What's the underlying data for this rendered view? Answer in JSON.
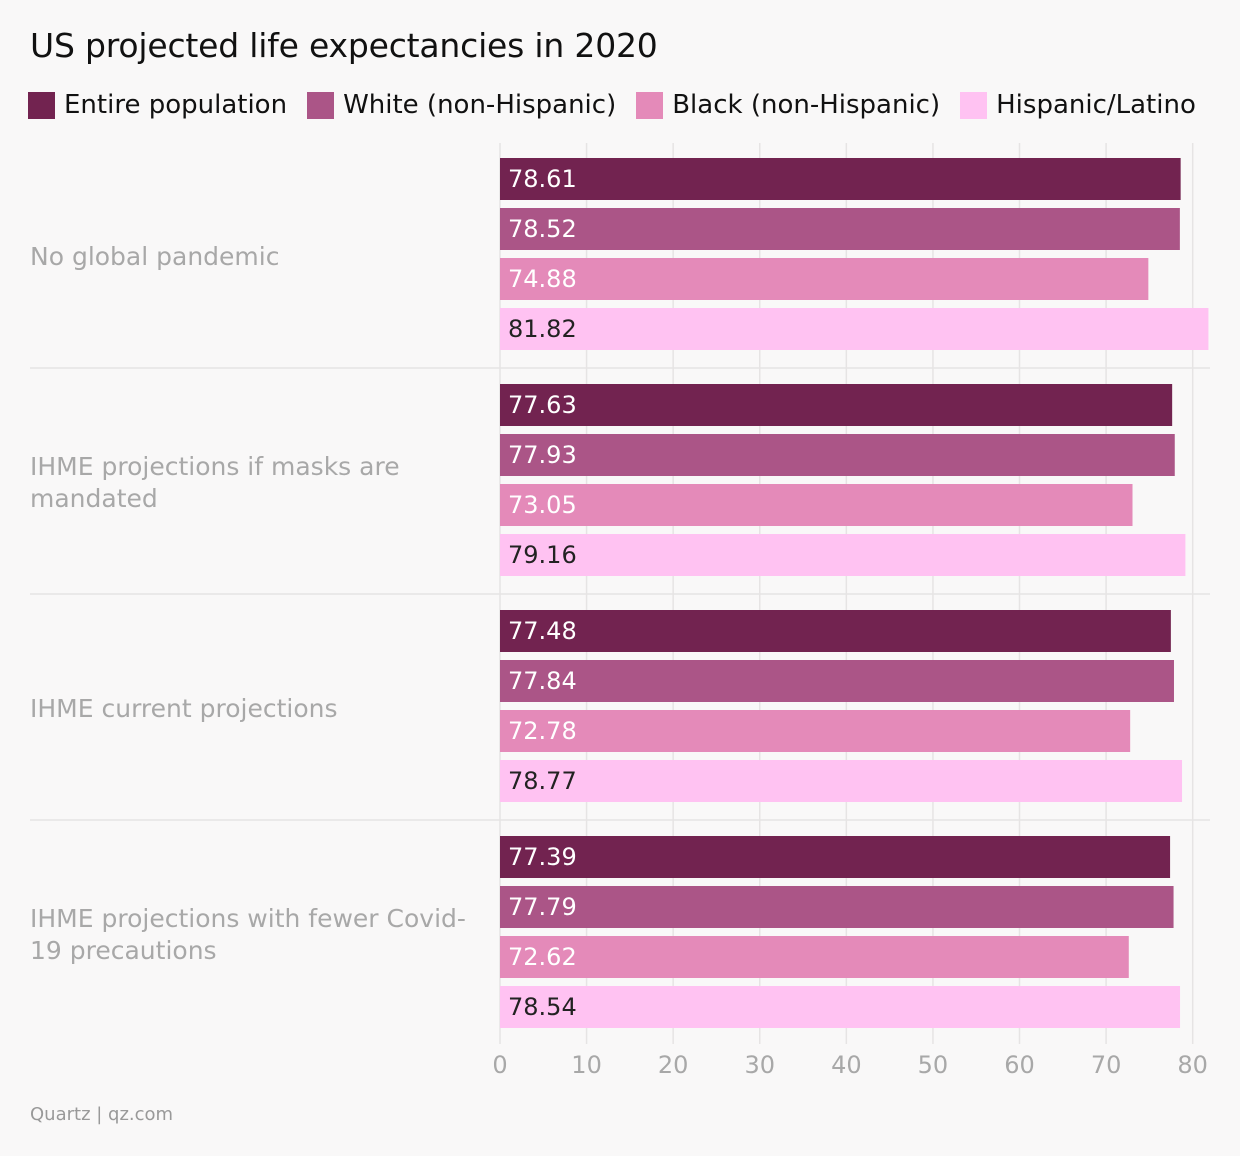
{
  "chart_data": {
    "type": "bar",
    "orientation": "horizontal",
    "title": "US projected life expectancies in 2020",
    "categories": [
      "No global pandemic",
      "IHME projections if masks are mandated",
      "IHME current projections",
      "IHME projections with fewer Covid-19 precautions"
    ],
    "category_label_lines": [
      [
        "No global pandemic"
      ],
      [
        "IHME projections if masks are",
        "mandated"
      ],
      [
        "IHME current projections"
      ],
      [
        "IHME projections with fewer Covid-",
        "19 precautions"
      ]
    ],
    "series": [
      {
        "name": "Entire population",
        "color": "#722350",
        "label_color": "#ffffff",
        "values": [
          78.61,
          77.63,
          77.48,
          77.39
        ]
      },
      {
        "name": "White (non-Hispanic)",
        "color": "#ab5587",
        "label_color": "#ffffff",
        "values": [
          78.52,
          77.93,
          77.84,
          77.79
        ]
      },
      {
        "name": "Black (non-Hispanic)",
        "color": "#e48ab9",
        "label_color": "#ffffff",
        "values": [
          74.88,
          73.05,
          72.78,
          72.62
        ]
      },
      {
        "name": "Hispanic/Latino",
        "color": "#ffc2f2",
        "label_color": "#222222",
        "values": [
          81.82,
          79.16,
          78.77,
          78.54
        ]
      }
    ],
    "value_labels": [
      [
        "78.61",
        "77.63",
        "77.48",
        "77.39"
      ],
      [
        "78.52",
        "77.93",
        "77.84",
        "77.79"
      ],
      [
        "74.88",
        "73.05",
        "72.78",
        "72.62"
      ],
      [
        "81.82",
        "79.16",
        "78.77",
        "78.54"
      ]
    ],
    "xlim": [
      0,
      82
    ],
    "xticks": [
      0,
      10,
      20,
      30,
      40,
      50,
      60,
      70,
      80
    ],
    "xtick_labels": [
      "0",
      "10",
      "20",
      "30",
      "40",
      "50",
      "60",
      "70",
      "80"
    ],
    "grid": true,
    "legend_position": "top-left"
  },
  "footer": {
    "source": "Quartz | qz.com"
  }
}
